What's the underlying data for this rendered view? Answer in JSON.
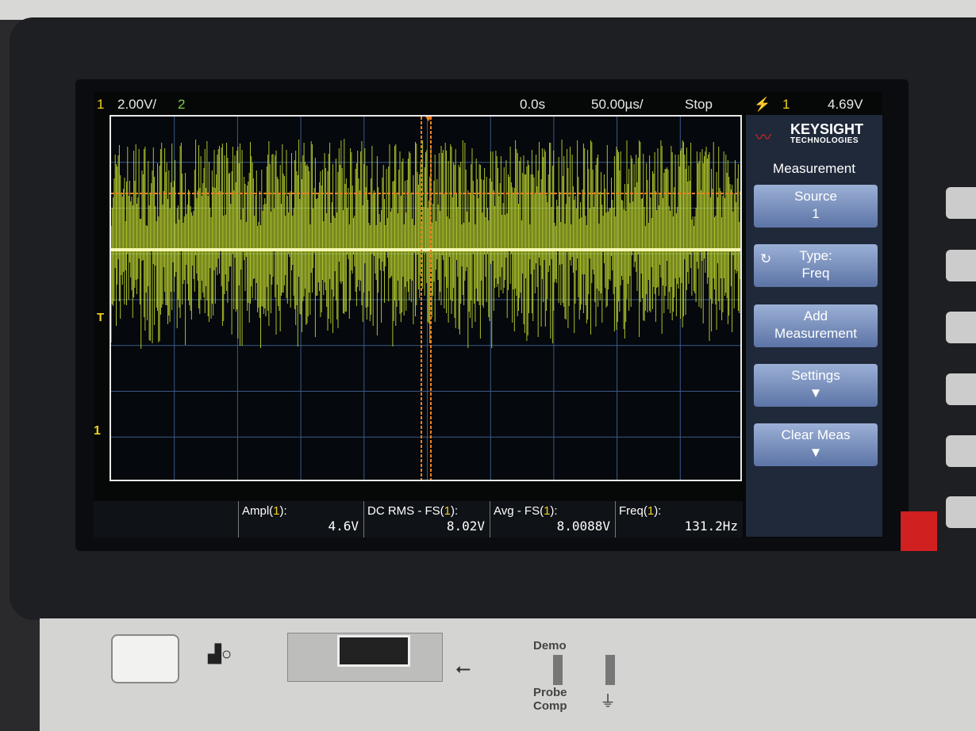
{
  "status": {
    "ch1": "1",
    "ch1_scale": "2.00V/",
    "ch2": "2",
    "time_offset": "0.0s",
    "time_scale": "50.00µs/",
    "run_state": "Stop",
    "trigger_icon": "trigger-edge-icon",
    "trigger_source": "1",
    "trigger_level": "4.69V"
  },
  "brand": {
    "name": "KEYSIGHT",
    "sub": "TECHNOLOGIES"
  },
  "menu": {
    "title": "Measurement",
    "keys": [
      {
        "line1": "Source",
        "line2": "1"
      },
      {
        "line1": "Type:",
        "line2": "Freq"
      },
      {
        "line1": "Add",
        "line2": "Measurement"
      },
      {
        "line1": "Settings",
        "line2": ""
      },
      {
        "line1": "Clear Meas",
        "line2": ""
      }
    ]
  },
  "markers": {
    "trigger": "T",
    "ch1_ground": "1"
  },
  "measurements": [
    {
      "name": "Ampl(",
      "src": "1",
      "end": "):",
      "value": "4.6V"
    },
    {
      "name": "DC RMS - FS(",
      "src": "1",
      "end": "):",
      "value": "8.02V"
    },
    {
      "name": "Avg - FS(",
      "src": "1",
      "end": "):",
      "value": "8.0088V"
    },
    {
      "name": "Freq(",
      "src": "1",
      "end": "):",
      "value": "131.2Hz"
    }
  ],
  "front_panel": {
    "demo": "Demo",
    "probe": "Probe",
    "comp": "Comp"
  },
  "colors": {
    "ch1": "#c8e030",
    "cursor": "#f08020",
    "softkey": "#7a90c0"
  }
}
